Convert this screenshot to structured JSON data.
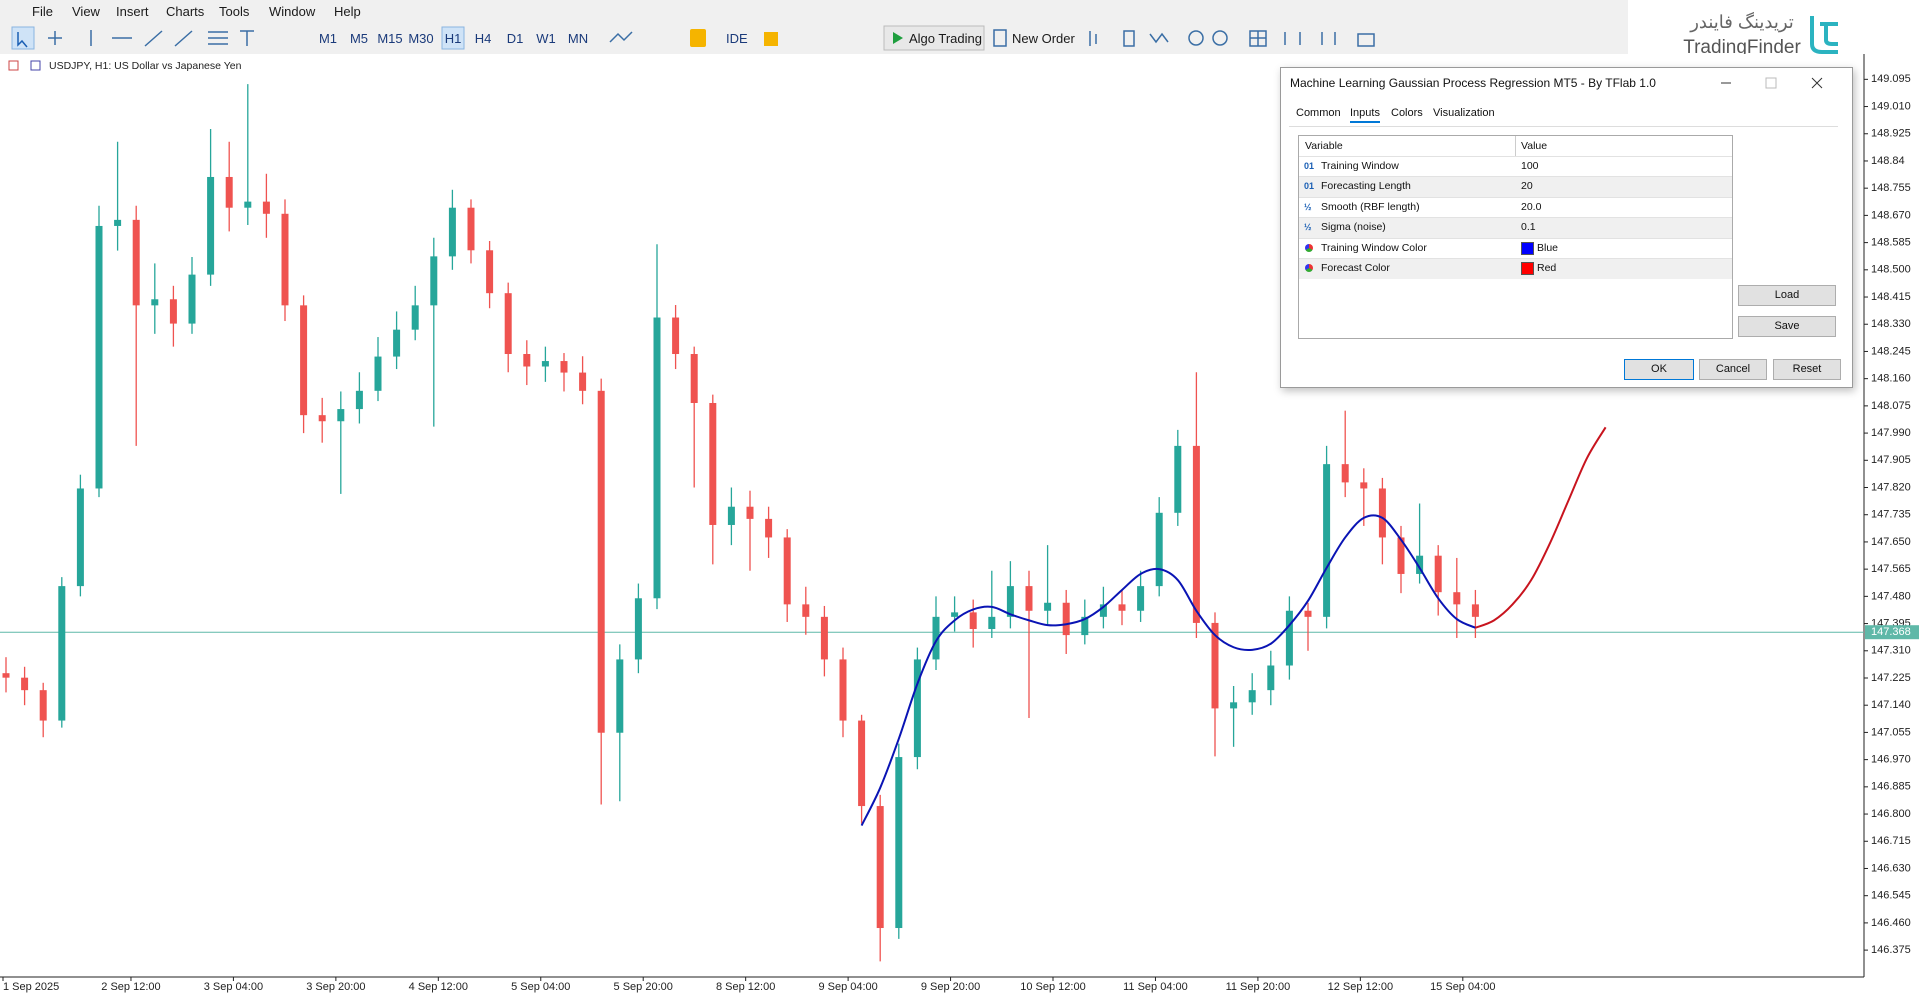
{
  "menu": [
    "File",
    "View",
    "Insert",
    "Charts",
    "Tools",
    "Window",
    "Help"
  ],
  "toolbar": {
    "timeframes": [
      "M1",
      "M5",
      "M15",
      "M30",
      "H1",
      "H4",
      "D1",
      "W1",
      "MN"
    ],
    "ide": "IDE",
    "algo_trading": "Algo Trading",
    "new_order": "New Order"
  },
  "watermark": {
    "persian": "تریدینگ فایندر",
    "latin": "TradingFinder"
  },
  "chart_data": {
    "type": "candlestick",
    "title": "USDJPY, H1:  US Dollar vs Japanese Yen",
    "up_color": "#26a69a",
    "down_color": "#ef5350",
    "ylim": [
      146.291,
      149.171
    ],
    "yticks": [
      149.095,
      {
        "value": 149.01,
        "label": "149.010"
      },
      148.925,
      148.84,
      148.755,
      {
        "value": 148.67,
        "label": "148.670"
      },
      148.585,
      {
        "value": 148.5,
        "label": "148.500"
      },
      148.415,
      {
        "value": 148.33,
        "label": "148.330"
      },
      148.245,
      {
        "value": 148.16,
        "label": "148.160"
      },
      148.075,
      {
        "value": 147.99,
        "label": "147.990"
      },
      147.905,
      {
        "value": 147.82,
        "label": "147.820"
      },
      147.735,
      {
        "value": 147.65,
        "label": "147.650"
      },
      147.565,
      {
        "value": 147.48,
        "label": "147.480"
      },
      147.395,
      {
        "value": 147.31,
        "label": "147.310"
      },
      147.225,
      {
        "value": 147.14,
        "label": "147.140"
      },
      147.055,
      {
        "value": 146.97,
        "label": "146.970"
      },
      146.885,
      {
        "value": 146.8,
        "label": "146.800"
      },
      146.715,
      {
        "value": 146.63,
        "label": "146.630"
      },
      146.545,
      {
        "value": 146.46,
        "label": "146.460"
      },
      146.375
    ],
    "x_labels": [
      "1 Sep 2025",
      "2 Sep 12:00",
      "3 Sep 04:00",
      "3 Sep 20:00",
      "4 Sep 12:00",
      "5 Sep 04:00",
      "5 Sep 20:00",
      "8 Sep 12:00",
      "9 Sep 04:00",
      "9 Sep 20:00",
      "10 Sep 12:00",
      "11 Sep 04:00",
      "11 Sep 20:00",
      "12 Sep 12:00",
      "15 Sep 04:00"
    ],
    "current_price": 147.368,
    "current_price_color": "#5fb8a8",
    "candles": [
      [
        147.24,
        147.29,
        147.18,
        147.226
      ],
      [
        147.226,
        147.26,
        147.14,
        147.187
      ],
      [
        147.187,
        147.21,
        147.04,
        147.092
      ],
      [
        147.092,
        147.54,
        147.07,
        147.512
      ],
      [
        147.512,
        147.86,
        147.48,
        147.817
      ],
      [
        147.817,
        148.7,
        147.79,
        148.637
      ],
      [
        148.637,
        148.9,
        148.56,
        148.656
      ],
      [
        148.656,
        148.7,
        147.95,
        148.389
      ],
      [
        148.389,
        148.52,
        148.3,
        148.408
      ],
      [
        148.408,
        148.45,
        148.26,
        148.332
      ],
      [
        148.332,
        148.54,
        148.3,
        148.485
      ],
      [
        148.485,
        148.94,
        148.45,
        148.79
      ],
      [
        148.79,
        148.9,
        148.62,
        148.694
      ],
      [
        148.694,
        149.08,
        148.64,
        148.713
      ],
      [
        148.713,
        148.8,
        148.6,
        148.675
      ],
      [
        148.675,
        148.72,
        148.34,
        148.389
      ],
      [
        148.389,
        148.42,
        147.99,
        148.046
      ],
      [
        148.046,
        148.1,
        147.96,
        148.027
      ],
      [
        148.027,
        148.12,
        147.8,
        148.065
      ],
      [
        148.065,
        148.18,
        148.02,
        148.122
      ],
      [
        148.122,
        148.29,
        148.09,
        148.229
      ],
      [
        148.229,
        148.37,
        148.19,
        148.313
      ],
      [
        148.313,
        148.45,
        148.28,
        148.389
      ],
      [
        148.389,
        148.6,
        148.01,
        148.542
      ],
      [
        148.542,
        148.75,
        148.5,
        148.694
      ],
      [
        148.694,
        148.72,
        148.52,
        148.561
      ],
      [
        148.561,
        148.59,
        148.38,
        148.427
      ],
      [
        148.427,
        148.46,
        148.18,
        148.237
      ],
      [
        148.237,
        148.28,
        148.14,
        148.198
      ],
      [
        148.198,
        148.26,
        148.15,
        148.215
      ],
      [
        148.215,
        148.24,
        148.12,
        148.179
      ],
      [
        148.179,
        148.23,
        148.08,
        148.122
      ],
      [
        148.122,
        148.16,
        146.83,
        147.054
      ],
      [
        147.054,
        147.33,
        146.84,
        147.283
      ],
      [
        147.283,
        147.52,
        147.24,
        147.474
      ],
      [
        147.474,
        148.58,
        147.44,
        148.351
      ],
      [
        148.351,
        148.39,
        148.19,
        148.237
      ],
      [
        148.237,
        148.26,
        147.82,
        148.084
      ],
      [
        148.084,
        148.11,
        147.58,
        147.703
      ],
      [
        147.703,
        147.82,
        147.64,
        147.76
      ],
      [
        147.76,
        147.81,
        147.56,
        147.722
      ],
      [
        147.722,
        147.76,
        147.6,
        147.664
      ],
      [
        147.664,
        147.69,
        147.4,
        147.455
      ],
      [
        147.455,
        147.51,
        147.36,
        147.416
      ],
      [
        147.416,
        147.45,
        147.23,
        147.283
      ],
      [
        147.283,
        147.32,
        147.04,
        147.092
      ],
      [
        147.092,
        147.11,
        146.77,
        146.825
      ],
      [
        146.825,
        146.86,
        146.34,
        146.444
      ],
      [
        146.444,
        147.02,
        146.41,
        146.978
      ],
      [
        146.978,
        147.32,
        146.94,
        147.283
      ],
      [
        147.283,
        147.48,
        147.25,
        147.416
      ],
      [
        147.416,
        147.48,
        147.37,
        147.43
      ],
      [
        147.43,
        147.47,
        147.32,
        147.378
      ],
      [
        147.378,
        147.56,
        147.35,
        147.416
      ],
      [
        147.416,
        147.59,
        147.38,
        147.512
      ],
      [
        147.512,
        147.56,
        147.1,
        147.435
      ],
      [
        147.435,
        147.64,
        147.39,
        147.46
      ],
      [
        147.46,
        147.5,
        147.3,
        147.359
      ],
      [
        147.359,
        147.47,
        147.33,
        147.416
      ],
      [
        147.416,
        147.51,
        147.38,
        147.455
      ],
      [
        147.455,
        147.5,
        147.39,
        147.435
      ],
      [
        147.435,
        147.56,
        147.4,
        147.512
      ],
      [
        147.512,
        147.79,
        147.48,
        147.741
      ],
      [
        147.741,
        148.0,
        147.7,
        147.95
      ],
      [
        147.95,
        148.18,
        147.35,
        147.397
      ],
      [
        147.397,
        147.43,
        146.98,
        147.13
      ],
      [
        147.13,
        147.2,
        147.01,
        147.149
      ],
      [
        147.149,
        147.24,
        147.11,
        147.187
      ],
      [
        147.187,
        147.31,
        147.14,
        147.264
      ],
      [
        147.264,
        147.48,
        147.22,
        147.435
      ],
      [
        147.435,
        147.46,
        147.31,
        147.416
      ],
      [
        147.416,
        147.95,
        147.38,
        147.893
      ],
      [
        147.893,
        148.06,
        147.79,
        147.836
      ],
      [
        147.836,
        147.88,
        147.7,
        147.817
      ],
      [
        147.817,
        147.85,
        147.58,
        147.664
      ],
      [
        147.664,
        147.7,
        147.49,
        147.55
      ],
      [
        147.55,
        147.77,
        147.52,
        147.607
      ],
      [
        147.607,
        147.64,
        147.42,
        147.493
      ],
      [
        147.493,
        147.6,
        147.35,
        147.455
      ],
      [
        147.455,
        147.5,
        147.35,
        147.416
      ]
    ],
    "training_curve": {
      "color": "#0a14b4",
      "values": [
        null,
        null,
        null,
        null,
        null,
        null,
        null,
        null,
        null,
        null,
        null,
        null,
        null,
        null,
        null,
        null,
        null,
        null,
        null,
        null,
        null,
        null,
        null,
        null,
        null,
        null,
        null,
        null,
        null,
        null,
        null,
        null,
        null,
        null,
        null,
        null,
        null,
        null,
        null,
        null,
        null,
        null,
        null,
        null,
        null,
        null,
        146.764,
        146.882,
        147.035,
        147.207,
        147.34,
        147.405,
        147.439,
        147.447,
        147.424,
        147.405,
        147.39,
        147.393,
        147.409,
        147.447,
        147.5,
        147.55,
        147.565,
        147.531,
        147.435,
        147.359,
        147.321,
        147.313,
        147.332,
        147.39,
        147.466,
        147.569,
        147.664,
        147.725,
        147.725,
        147.657,
        147.569,
        147.474,
        147.409,
        147.382
      ]
    },
    "forecast_curve": {
      "color": "#c8141e",
      "values": [
        null,
        null,
        null,
        null,
        null,
        null,
        null,
        null,
        null,
        null,
        null,
        null,
        null,
        null,
        null,
        null,
        null,
        null,
        null,
        null,
        null,
        null,
        null,
        null,
        null,
        null,
        null,
        null,
        null,
        null,
        null,
        null,
        null,
        null,
        null,
        null,
        null,
        null,
        null,
        null,
        null,
        null,
        null,
        null,
        null,
        null,
        null,
        null,
        null,
        null,
        null,
        null,
        null,
        null,
        null,
        null,
        null,
        null,
        null,
        null,
        null,
        null,
        null,
        null,
        null,
        null,
        null,
        null,
        null,
        null,
        null,
        null,
        null,
        null,
        null,
        null,
        null,
        null,
        null,
        147.382,
        147.405,
        147.455,
        147.531,
        147.645,
        147.779,
        147.912,
        148.008
      ]
    }
  },
  "dialog": {
    "title": "Machine Learning Gaussian Process Regression MT5 - By TFlab 1.0",
    "tabs": [
      "Common",
      "Inputs",
      "Colors",
      "Visualization"
    ],
    "columns": [
      "Variable",
      "Value"
    ],
    "rows": [
      {
        "icon": "01",
        "variable": "Training Window",
        "value": 100
      },
      {
        "icon": "01",
        "variable": "Forecasting Length",
        "value": 20
      },
      {
        "icon": "½",
        "variable": "Smooth (RBF length)",
        "value": "20.0"
      },
      {
        "icon": "½",
        "variable": "Sigma (noise)",
        "value": 0.1
      },
      {
        "variable": "Training Window Color",
        "value": "Blue",
        "swatch": "#0000ff"
      },
      {
        "variable": "Forecast Color",
        "value": "Red",
        "swatch": "#ff0000"
      }
    ],
    "buttons": [
      "Load",
      "Save",
      "OK",
      "Cancel",
      "Reset"
    ]
  }
}
